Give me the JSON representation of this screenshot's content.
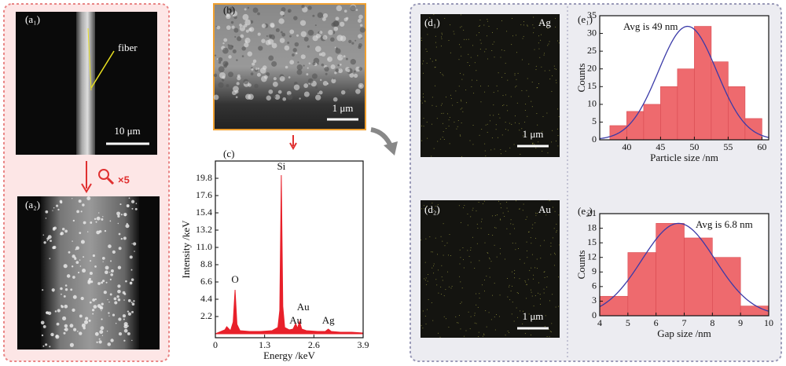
{
  "panels": {
    "a1": "(a₁)",
    "a2": "(a₂)",
    "b": "(b)",
    "c": "(c)",
    "d1": "(d₁)",
    "d2": "(d₂)",
    "e1": "(e₁)",
    "e2": "(e₂)",
    "fiber": "fiber",
    "scale_a1": "10 μm",
    "zoom": "×5",
    "scale_b": "1 μm",
    "scale_d1": "1 μm",
    "scale_d2": "1 μm",
    "element_d1": "Ag",
    "element_d2": "Au"
  },
  "chart_data": [
    {
      "type": "area",
      "xlabel": "Energy /keV",
      "ylabel": "Intensity /keV",
      "color": "#e8202a",
      "x": [
        0,
        0.15,
        0.25,
        0.3,
        0.4,
        0.47,
        0.52,
        0.57,
        0.65,
        0.9,
        1.2,
        1.5,
        1.65,
        1.7,
        1.74,
        1.78,
        1.83,
        1.95,
        2.05,
        2.12,
        2.17,
        2.22,
        2.28,
        2.4,
        2.7,
        2.9,
        2.98,
        3.06,
        3.3,
        3.6,
        3.9
      ],
      "values": [
        0,
        0.3,
        0.5,
        0.9,
        0.4,
        1.5,
        5.6,
        1.2,
        0.4,
        0.3,
        0.3,
        0.4,
        0.8,
        3,
        20.2,
        3.5,
        0.8,
        0.5,
        0.6,
        1.3,
        0.7,
        1.6,
        0.6,
        0.4,
        0.3,
        0.3,
        0.6,
        0.3,
        0.2,
        0.2,
        0.1
      ],
      "annotations": [
        "O",
        "Si",
        "Au",
        "Au",
        "Ag"
      ],
      "xlim": [
        0,
        3.9
      ],
      "xticks": [
        0,
        1.3,
        2.6,
        3.9
      ],
      "ylim": [
        -0.5,
        22
      ],
      "yticks": [
        2.2,
        4.4,
        6.6,
        8.8,
        {
          "value": 11,
          "label": "11.0"
        },
        13.2,
        15.4,
        17.6,
        19.8
      ]
    },
    {
      "type": "histogram",
      "xlabel": "Particle size /nm",
      "ylabel": "Counts",
      "annotation": "Avg is 49 nm",
      "color": "#ee6a6e",
      "fit_color": "#3a3aa8",
      "bins": [
        37.5,
        40,
        42.5,
        45,
        47.5,
        50,
        52.5,
        55,
        57.5,
        60
      ],
      "counts": [
        4,
        8,
        10,
        15,
        20,
        32,
        22,
        15,
        6
      ],
      "fit": {
        "mean": 49,
        "sd": 4.3,
        "amplitude": 32
      },
      "xlim": [
        36,
        61
      ],
      "xticks": [
        40,
        45,
        50,
        55,
        60
      ],
      "ylim": [
        0,
        35
      ],
      "yticks": [
        0,
        5,
        10,
        15,
        20,
        25,
        30,
        35
      ]
    },
    {
      "type": "histogram",
      "xlabel": "Gap size /nm",
      "ylabel": "Counts",
      "annotation": "Avg is 6.8 nm",
      "color": "#ee6a6e",
      "fit_color": "#3a3aa8",
      "bins": [
        4,
        5,
        6,
        7,
        8,
        9,
        10
      ],
      "counts": [
        4,
        13,
        19,
        16,
        12,
        2
      ],
      "fit": {
        "mean": 6.8,
        "sd": 1.3,
        "amplitude": 19
      },
      "xlim": [
        4,
        10
      ],
      "xticks": [
        4,
        5,
        6,
        7,
        8,
        9,
        10
      ],
      "ylim": [
        0,
        21
      ],
      "yticks": [
        0,
        3,
        6,
        9,
        12,
        15,
        18,
        21
      ]
    }
  ]
}
